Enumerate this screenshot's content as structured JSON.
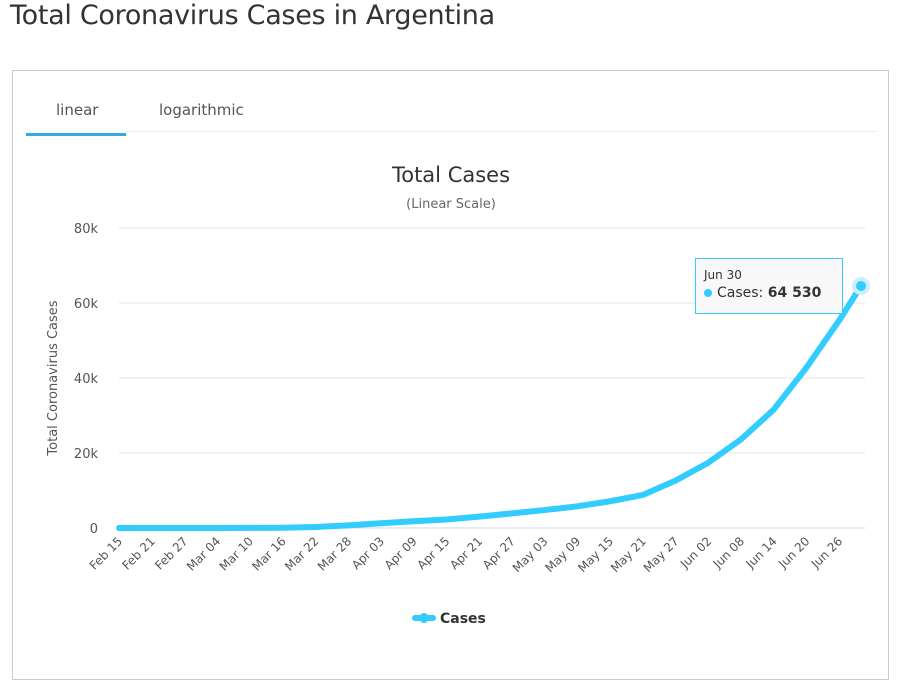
{
  "page_title": "Total Coronavirus Cases in Argentina",
  "tabs": [
    {
      "label": "linear"
    },
    {
      "label": "logarithmic"
    }
  ],
  "colors": {
    "series": "#33ccff",
    "accent": "#33aae0"
  },
  "tooltip": {
    "date": "Jun 30",
    "label": "Cases: ",
    "value": "64 530"
  },
  "chart_data": {
    "type": "line",
    "title": "Total Cases",
    "subtitle": "(Linear Scale)",
    "ylabel": "Total Coronavirus Cases",
    "xlabel": "",
    "ylim": [
      0,
      80000
    ],
    "yticks": [
      0,
      20000,
      40000,
      60000,
      80000
    ],
    "ytick_labels": [
      "0",
      "20k",
      "40k",
      "60k",
      "80k"
    ],
    "xtick_labels": [
      "Feb 15",
      "Feb 21",
      "Feb 27",
      "Mar 04",
      "Mar 10",
      "Mar 16",
      "Mar 22",
      "Mar 28",
      "Apr 03",
      "Apr 09",
      "Apr 15",
      "Apr 21",
      "Apr 27",
      "May 03",
      "May 09",
      "May 15",
      "May 21",
      "May 27",
      "Jun 02",
      "Jun 08",
      "Jun 14",
      "Jun 20",
      "Jun 26"
    ],
    "legend": "bottom-center",
    "series": [
      {
        "name": "Cases",
        "x": [
          "Feb 15",
          "Feb 21",
          "Feb 27",
          "Mar 04",
          "Mar 10",
          "Mar 16",
          "Mar 22",
          "Mar 28",
          "Apr 03",
          "Apr 09",
          "Apr 15",
          "Apr 21",
          "Apr 27",
          "May 03",
          "May 09",
          "May 15",
          "May 21",
          "May 27",
          "Jun 02",
          "Jun 08",
          "Jun 14",
          "Jun 20",
          "Jun 26",
          "Jun 30"
        ],
        "day": [
          0,
          6,
          12,
          18,
          24,
          30,
          36,
          42,
          48,
          54,
          60,
          66,
          72,
          78,
          84,
          90,
          96,
          102,
          108,
          114,
          120,
          126,
          132,
          136
        ],
        "values": [
          0,
          0,
          0,
          1,
          17,
          56,
          266,
          690,
          1265,
          1795,
          2277,
          3031,
          3892,
          4783,
          5776,
          7134,
          8809,
          12628,
          17415,
          23620,
          31577,
          42785,
          55343,
          64530
        ]
      }
    ]
  }
}
